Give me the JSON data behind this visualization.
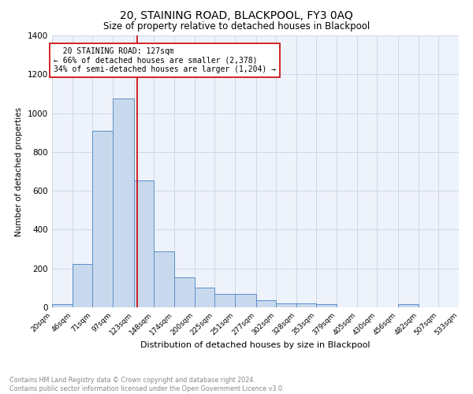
{
  "title": "20, STAINING ROAD, BLACKPOOL, FY3 0AQ",
  "subtitle": "Size of property relative to detached houses in Blackpool",
  "xlabel": "Distribution of detached houses by size in Blackpool",
  "ylabel": "Number of detached properties",
  "bar_values": [
    15,
    222,
    910,
    1075,
    655,
    290,
    155,
    100,
    68,
    68,
    38,
    22,
    22,
    18,
    0,
    0,
    0,
    15,
    0,
    0
  ],
  "bar_edges": [
    20,
    46,
    71,
    97,
    123,
    148,
    174,
    200,
    225,
    251,
    277,
    302,
    328,
    353,
    379,
    405,
    430,
    456,
    482,
    507,
    533
  ],
  "tick_labels": [
    "20sqm",
    "46sqm",
    "71sqm",
    "97sqm",
    "123sqm",
    "148sqm",
    "174sqm",
    "200sqm",
    "225sqm",
    "251sqm",
    "277sqm",
    "302sqm",
    "328sqm",
    "353sqm",
    "379sqm",
    "405sqm",
    "430sqm",
    "456sqm",
    "482sqm",
    "507sqm",
    "533sqm"
  ],
  "property_value": 127,
  "bar_color": "#c9d9ed",
  "bar_edge_color": "#5b8fc9",
  "vline_color": "#cc0000",
  "annotation_text": "  20 STAINING ROAD: 127sqm\n← 66% of detached houses are smaller (2,378)\n34% of semi-detached houses are larger (1,204) →",
  "annotation_box_color": "#ffffff",
  "annotation_box_edge": "#cc0000",
  "grid_color": "#d0d8e8",
  "background_color": "#eef2fa",
  "ylim": [
    0,
    1400
  ],
  "yticks": [
    0,
    200,
    400,
    600,
    800,
    1000,
    1200,
    1400
  ],
  "footnote": "Contains HM Land Registry data © Crown copyright and database right 2024.\nContains public sector information licensed under the Open Government Licence v3.0."
}
